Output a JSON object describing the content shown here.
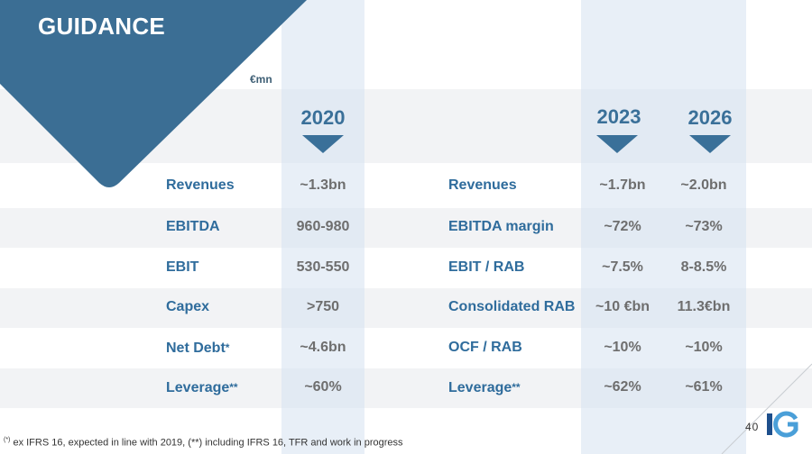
{
  "header": {
    "title": "GUIDANCE",
    "unit": "€mn"
  },
  "years": {
    "left": "2020",
    "mid": "2023",
    "right": "2026"
  },
  "left_rows": [
    {
      "label": "Revenues",
      "mark": "",
      "value": "~1.3bn"
    },
    {
      "label": "EBITDA",
      "mark": "",
      "value": "960-980"
    },
    {
      "label": "EBIT",
      "mark": "",
      "value": "530-550"
    },
    {
      "label": "Capex",
      "mark": "",
      "value": ">750"
    },
    {
      "label": "Net Debt",
      "mark": "*",
      "value": "~4.6bn"
    },
    {
      "label": "Leverage",
      "mark": "**",
      "value": "~60%"
    }
  ],
  "right_rows": [
    {
      "label": "Revenues",
      "mark": "",
      "v2023": "~1.7bn",
      "v2026": "~2.0bn"
    },
    {
      "label": "EBITDA margin",
      "mark": "",
      "v2023": "~72%",
      "v2026": "~73%"
    },
    {
      "label": "EBIT / RAB",
      "mark": "",
      "v2023": "~7.5%",
      "v2026": "8-8.5%"
    },
    {
      "label": "Consolidated RAB",
      "mark": "",
      "v2023": "~10 €bn",
      "v2026": "11.3€bn"
    },
    {
      "label": "OCF / RAB",
      "mark": "",
      "v2023": "~10%",
      "v2026": "~10%"
    },
    {
      "label": "Leverage",
      "mark": "**",
      "v2023": "~62%",
      "v2026": "~61%"
    }
  ],
  "footnote": {
    "mark1": "(*)",
    "text1": " ex IFRS 16, expected in line with 2019, ",
    "mark2": "(**)",
    "text2": "  including IFRS 16, TFR and work in progress"
  },
  "page_number": "40",
  "logo": {
    "text": "IG",
    "colors": {
      "blue": "#1e4f8c",
      "light_blue": "#4a9fd8"
    }
  },
  "colors": {
    "accent": "#3a7099",
    "label": "#2f6c9c",
    "value": "#6e6e6e",
    "band": "#f2f3f5"
  }
}
